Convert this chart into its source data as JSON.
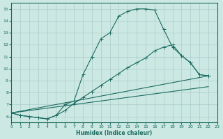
{
  "xlabel": "Humidex (Indice chaleur)",
  "bg_color": "#cce8e2",
  "grid_color": "#aacccc",
  "line_color": "#1a6b60",
  "xlim": [
    0,
    23
  ],
  "ylim": [
    5.5,
    15.5
  ],
  "xticks": [
    0,
    1,
    2,
    3,
    4,
    5,
    6,
    7,
    8,
    9,
    10,
    11,
    12,
    13,
    14,
    15,
    16,
    17,
    18,
    19,
    20,
    21,
    22,
    23
  ],
  "yticks": [
    6,
    7,
    8,
    9,
    10,
    11,
    12,
    13,
    14,
    15
  ],
  "line1_x": [
    0,
    1,
    2,
    3,
    4,
    5,
    6,
    7,
    8,
    9,
    10,
    11,
    12,
    13,
    14,
    15,
    16,
    17,
    18,
    19,
    20,
    21,
    22
  ],
  "line1_y": [
    6.3,
    6.1,
    6.0,
    5.9,
    5.8,
    6.1,
    7.0,
    7.3,
    9.5,
    11.0,
    12.5,
    13.0,
    14.4,
    14.8,
    15.0,
    15.0,
    14.9,
    13.3,
    11.8,
    11.1,
    10.5,
    9.5,
    9.4
  ],
  "line2_x": [
    0,
    1,
    2,
    3,
    4,
    5,
    6,
    7,
    8,
    9,
    10,
    11,
    12,
    13,
    14,
    15,
    16,
    17,
    18,
    19,
    20,
    21,
    22
  ],
  "line2_y": [
    6.3,
    6.1,
    6.0,
    5.9,
    5.8,
    6.1,
    6.5,
    7.1,
    7.6,
    8.1,
    8.6,
    9.1,
    9.6,
    10.1,
    10.5,
    10.9,
    11.5,
    11.8,
    12.0,
    11.1,
    10.5,
    9.5,
    9.4
  ],
  "line3_x": [
    0,
    22
  ],
  "line3_y": [
    6.3,
    9.4
  ],
  "line4_x": [
    0,
    22
  ],
  "line4_y": [
    6.3,
    8.5
  ]
}
